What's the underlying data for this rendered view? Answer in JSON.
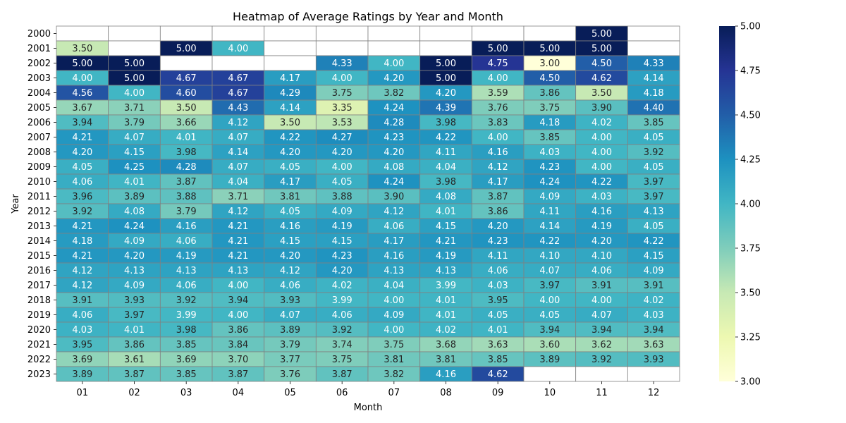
{
  "chart_data": {
    "type": "heatmap",
    "title": "Heatmap of Average Ratings by Year and Month",
    "xlabel": "Month",
    "ylabel": "Year",
    "x_categories": [
      "01",
      "02",
      "03",
      "04",
      "05",
      "06",
      "07",
      "08",
      "09",
      "10",
      "11",
      "12"
    ],
    "y_categories": [
      "2000",
      "2001",
      "2002",
      "2003",
      "2004",
      "2005",
      "2006",
      "2007",
      "2008",
      "2009",
      "2010",
      "2011",
      "2012",
      "2013",
      "2014",
      "2015",
      "2016",
      "2017",
      "2018",
      "2019",
      "2020",
      "2021",
      "2022",
      "2023"
    ],
    "values": [
      [
        null,
        null,
        null,
        null,
        null,
        null,
        null,
        null,
        null,
        null,
        5.0,
        null
      ],
      [
        3.5,
        null,
        5.0,
        4.0,
        null,
        null,
        null,
        null,
        5.0,
        5.0,
        5.0,
        null
      ],
      [
        5.0,
        5.0,
        null,
        null,
        null,
        4.33,
        4.0,
        5.0,
        4.75,
        3.0,
        4.5,
        4.33
      ],
      [
        4.0,
        5.0,
        4.67,
        4.67,
        4.17,
        4.0,
        4.2,
        5.0,
        4.0,
        4.5,
        4.62,
        4.14
      ],
      [
        4.56,
        4.0,
        4.6,
        4.67,
        4.29,
        3.75,
        3.82,
        4.2,
        3.59,
        3.86,
        3.5,
        4.18
      ],
      [
        3.67,
        3.71,
        3.5,
        4.43,
        4.14,
        3.35,
        4.24,
        4.39,
        3.76,
        3.75,
        3.9,
        4.4
      ],
      [
        3.94,
        3.79,
        3.66,
        4.12,
        3.5,
        3.53,
        4.28,
        3.98,
        3.83,
        4.18,
        4.02,
        3.85
      ],
      [
        4.21,
        4.07,
        4.01,
        4.07,
        4.22,
        4.27,
        4.23,
        4.22,
        4.0,
        3.85,
        4.0,
        4.05
      ],
      [
        4.2,
        4.15,
        3.98,
        4.14,
        4.2,
        4.2,
        4.2,
        4.11,
        4.16,
        4.03,
        4.0,
        3.92
      ],
      [
        4.05,
        4.25,
        4.28,
        4.07,
        4.05,
        4.0,
        4.08,
        4.04,
        4.12,
        4.23,
        4.0,
        4.05
      ],
      [
        4.06,
        4.01,
        3.87,
        4.04,
        4.17,
        4.05,
        4.24,
        3.98,
        4.17,
        4.24,
        4.22,
        3.97
      ],
      [
        3.96,
        3.89,
        3.88,
        3.71,
        3.81,
        3.88,
        3.9,
        4.08,
        3.87,
        4.09,
        4.03,
        3.97
      ],
      [
        3.92,
        4.08,
        3.79,
        4.12,
        4.05,
        4.09,
        4.12,
        4.01,
        3.86,
        4.11,
        4.16,
        4.13
      ],
      [
        4.21,
        4.24,
        4.16,
        4.21,
        4.16,
        4.19,
        4.06,
        4.15,
        4.2,
        4.14,
        4.19,
        4.05
      ],
      [
        4.18,
        4.09,
        4.06,
        4.21,
        4.15,
        4.15,
        4.17,
        4.21,
        4.23,
        4.22,
        4.2,
        4.22
      ],
      [
        4.21,
        4.2,
        4.19,
        4.21,
        4.2,
        4.23,
        4.16,
        4.19,
        4.11,
        4.1,
        4.1,
        4.15
      ],
      [
        4.12,
        4.13,
        4.13,
        4.13,
        4.12,
        4.2,
        4.13,
        4.13,
        4.06,
        4.07,
        4.06,
        4.09
      ],
      [
        4.12,
        4.09,
        4.06,
        4.0,
        4.06,
        4.02,
        4.04,
        3.99,
        4.03,
        3.97,
        3.91,
        3.91
      ],
      [
        3.91,
        3.93,
        3.92,
        3.94,
        3.93,
        3.99,
        4.0,
        4.01,
        3.95,
        4.0,
        4.0,
        4.02
      ],
      [
        4.06,
        3.97,
        3.99,
        4.0,
        4.07,
        4.06,
        4.09,
        4.01,
        4.05,
        4.05,
        4.07,
        4.03
      ],
      [
        4.03,
        4.01,
        3.98,
        3.86,
        3.89,
        3.92,
        4.0,
        4.02,
        4.01,
        3.94,
        3.94,
        3.94
      ],
      [
        3.95,
        3.86,
        3.85,
        3.84,
        3.79,
        3.74,
        3.75,
        3.68,
        3.63,
        3.6,
        3.62,
        3.63
      ],
      [
        3.69,
        3.61,
        3.69,
        3.7,
        3.77,
        3.75,
        3.81,
        3.81,
        3.85,
        3.89,
        3.92,
        3.93
      ],
      [
        3.89,
        3.87,
        3.85,
        3.87,
        3.76,
        3.87,
        3.82,
        4.16,
        4.62,
        null,
        null,
        null
      ]
    ],
    "value_format": "0.00",
    "colormap": "YlGnBu",
    "color_range": [
      3.0,
      5.0
    ],
    "colorbar_ticks": [
      "3.00",
      "3.25",
      "3.50",
      "3.75",
      "4.00",
      "4.25",
      "4.50",
      "4.75",
      "5.00"
    ],
    "cell_border_color": "#808080",
    "grid": false,
    "legend": "colorbar-right"
  }
}
